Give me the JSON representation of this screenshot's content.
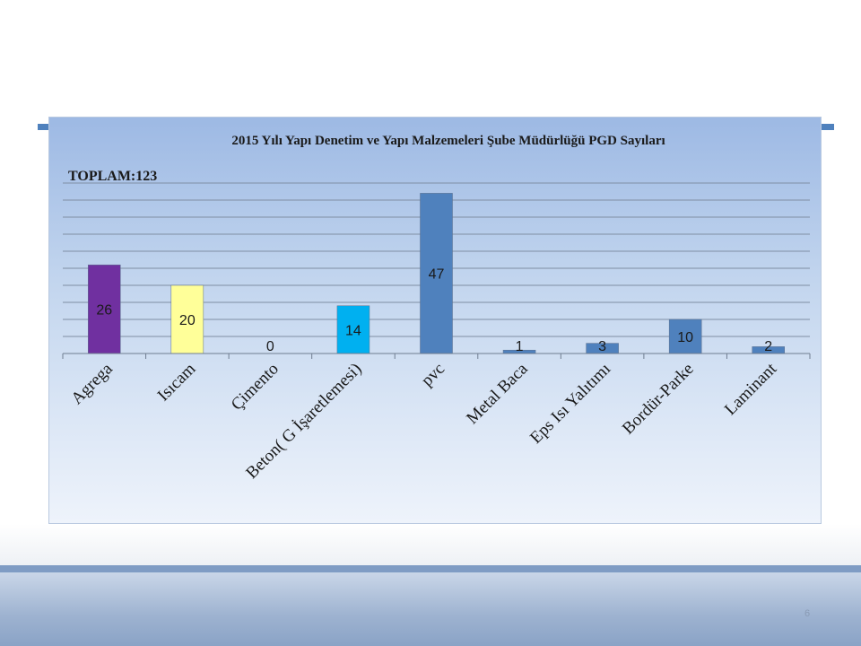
{
  "slide": {
    "page_number": "6"
  },
  "chart_data": {
    "type": "bar",
    "title": "2015 Yılı Yapı Denetim ve Yapı Malzemeleri Şube Müdürlüğü PGD Sayıları",
    "annotation": "TOPLAM:123",
    "categories": [
      "Agrega",
      "Isıcam",
      "Çimento",
      "Beton( G İşaretlemesi)",
      "pvc",
      "Metal Baca",
      "Eps Isı Yalıtımı",
      "Bordür-Parke",
      "Laminant"
    ],
    "values": [
      26,
      20,
      0,
      14,
      47,
      1,
      3,
      10,
      2
    ],
    "bar_colors": [
      "#7030a0",
      "#ffff99",
      "#4f81bd",
      "#00b0f0",
      "#4f81bd",
      "#4f81bd",
      "#4f81bd",
      "#4f81bd",
      "#4f81bd"
    ],
    "ylim": [
      0,
      50
    ],
    "grid": true,
    "legend": "none",
    "xlabel": "",
    "ylabel": ""
  }
}
